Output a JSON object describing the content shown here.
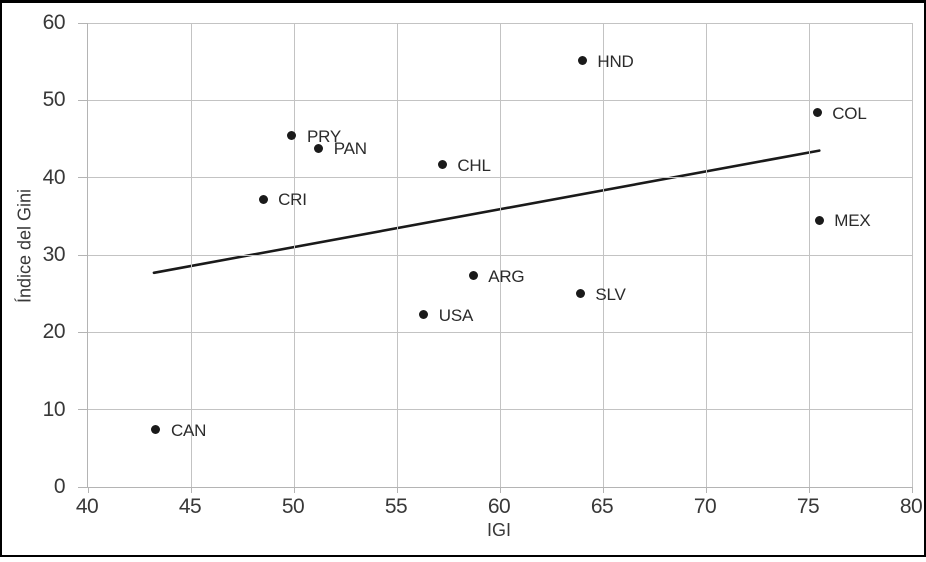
{
  "chart_data": {
    "type": "scatter",
    "xlabel": "IGI",
    "ylabel": "Índice del Gini",
    "xlim": [
      40,
      80
    ],
    "ylim": [
      0,
      60
    ],
    "x_ticks": [
      40,
      45,
      50,
      55,
      60,
      65,
      70,
      75,
      80
    ],
    "y_ticks": [
      0,
      10,
      20,
      30,
      40,
      50,
      60
    ],
    "grid": true,
    "legend": "none",
    "points": [
      {
        "label": "CAN",
        "x": 43.3,
        "y": 7.4
      },
      {
        "label": "CRI",
        "x": 48.5,
        "y": 37.2
      },
      {
        "label": "PRY",
        "x": 49.9,
        "y": 45.4
      },
      {
        "label": "PAN",
        "x": 51.2,
        "y": 43.8
      },
      {
        "label": "USA",
        "x": 56.3,
        "y": 22.3
      },
      {
        "label": "CHL",
        "x": 57.2,
        "y": 41.7
      },
      {
        "label": "ARG",
        "x": 58.7,
        "y": 27.3
      },
      {
        "label": "SLV",
        "x": 63.9,
        "y": 25.0
      },
      {
        "label": "HND",
        "x": 64.0,
        "y": 55.1
      },
      {
        "label": "COL",
        "x": 75.4,
        "y": 48.4
      },
      {
        "label": "MEX",
        "x": 75.5,
        "y": 34.5
      }
    ],
    "trendline": {
      "x1": 43.2,
      "y1": 27.7,
      "x2": 75.5,
      "y2": 43.5
    }
  },
  "colors": {
    "point": "#1a1a1a",
    "trendline": "#1a1a1a",
    "gridline": "#c3c3c3",
    "axis": "#b4b4b4",
    "text": "#383838",
    "frame": "#000000"
  }
}
